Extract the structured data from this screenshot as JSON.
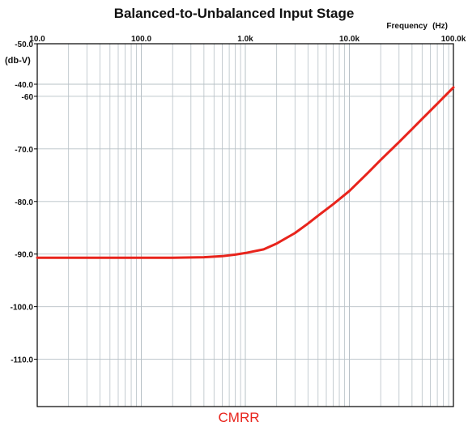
{
  "chart_data": {
    "type": "line",
    "title": "Balanced-to-Unbalanced Input Stage",
    "xlabel": "Frequency",
    "xunit": "(Hz)",
    "ylabel": "(db-V)",
    "xscale": "log",
    "xlim": [
      10,
      100000
    ],
    "ylim": [
      -119,
      -50
    ],
    "x_tick_labels": [
      "10.0",
      "100.0",
      "1.0k",
      "10.0k",
      "100.0k"
    ],
    "y_ticks": [
      -40,
      -50,
      -60,
      -70,
      -80,
      -90,
      -100,
      -110
    ],
    "y_tick_labels": [
      "-40.0",
      "-50.0",
      "-60",
      "-70.0",
      "-80.0",
      "-90.0",
      "-100.0",
      "-110.0"
    ],
    "grid": true,
    "legend_position": "bottom-center",
    "colors": {
      "series": "#e8241c",
      "grid": "#b7c0c6",
      "axis": "#000000"
    },
    "series": [
      {
        "name": "CMRR",
        "x": [
          10,
          20,
          50,
          100,
          200,
          400,
          600,
          800,
          1000,
          1500,
          2000,
          3000,
          4000,
          5000,
          7000,
          10000,
          15000,
          20000,
          30000,
          50000,
          70000,
          100000
        ],
        "values": [
          -90.7,
          -90.7,
          -90.7,
          -90.7,
          -90.7,
          -90.6,
          -90.4,
          -90.1,
          -89.8,
          -89.1,
          -88.0,
          -86.0,
          -84.2,
          -82.7,
          -80.5,
          -78.0,
          -74.6,
          -72.1,
          -68.7,
          -64.3,
          -61.4,
          -58.3
        ]
      }
    ]
  }
}
